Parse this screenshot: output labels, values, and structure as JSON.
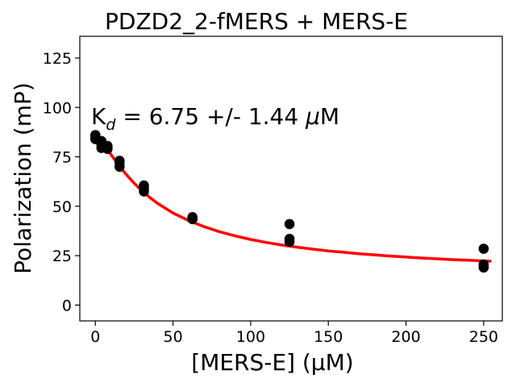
{
  "chart_data": {
    "type": "scatter",
    "title": "PDZD2_2-fMERS + MERS-E",
    "xlabel": "[MERS-E] (μM)",
    "ylabel": "Polarization (mP)",
    "xlim": [
      -10,
      262
    ],
    "ylim": [
      -8,
      136
    ],
    "xticks": [
      0,
      50,
      100,
      150,
      200,
      250
    ],
    "yticks": [
      0,
      25,
      50,
      75,
      100,
      125
    ],
    "annotation": {
      "k": "K",
      "sub": "d",
      "text": " = 6.75 +/- 1.44 ",
      "mu": "μ",
      "unit": "M"
    },
    "series": [
      {
        "name": "data",
        "kind": "scatter",
        "color": "#000000",
        "points": [
          [
            0,
            86
          ],
          [
            0,
            85
          ],
          [
            0,
            84
          ],
          [
            3.9,
            83
          ],
          [
            3.9,
            81
          ],
          [
            3.9,
            79.5
          ],
          [
            7.8,
            80.5
          ],
          [
            7.8,
            79.5
          ],
          [
            7.8,
            79
          ],
          [
            15.6,
            73
          ],
          [
            15.6,
            72
          ],
          [
            15.6,
            70
          ],
          [
            31.25,
            60.5
          ],
          [
            31.25,
            59
          ],
          [
            31.25,
            57.5
          ],
          [
            62.5,
            44.5
          ],
          [
            62.5,
            44
          ],
          [
            62.5,
            43.5
          ],
          [
            125,
            41
          ],
          [
            125,
            33.5
          ],
          [
            125,
            32
          ],
          [
            250,
            28.5
          ],
          [
            250,
            20.5
          ],
          [
            250,
            19
          ]
        ]
      },
      {
        "name": "fit",
        "kind": "line",
        "color": "#ff0000",
        "x": [
          0,
          1,
          2,
          3,
          4,
          5,
          6,
          8,
          10,
          12,
          15,
          18,
          21,
          25,
          30,
          35,
          40,
          50,
          60,
          70,
          80,
          90,
          100,
          110,
          120,
          130,
          140,
          150,
          160,
          170,
          180,
          190,
          200,
          210,
          220,
          230,
          240,
          250,
          255
        ],
        "y": [
          86.8,
          86.0,
          85.1,
          84.1,
          83.0,
          81.9,
          80.8,
          78.5,
          76.3,
          74.1,
          70.9,
          67.9,
          65.1,
          61.7,
          57.8,
          54.5,
          51.5,
          46.6,
          42.8,
          39.7,
          37.1,
          35.0,
          33.2,
          31.7,
          30.4,
          29.3,
          28.3,
          27.4,
          26.7,
          26.0,
          25.4,
          24.8,
          24.3,
          23.8,
          23.4,
          23.0,
          22.7,
          22.35,
          22.2
        ]
      }
    ]
  }
}
